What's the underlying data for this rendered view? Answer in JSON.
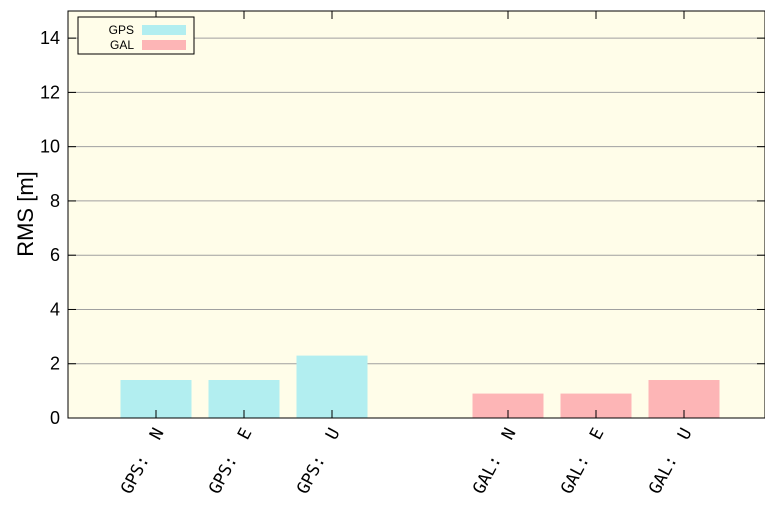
{
  "chart_data": {
    "type": "bar",
    "title": "",
    "xlabel": "",
    "ylabel": "RMS [m]",
    "ylim": [
      0,
      15
    ],
    "yticks": [
      0,
      2,
      4,
      6,
      8,
      10,
      12,
      14
    ],
    "grid": true,
    "legend_position": "top-left",
    "background_color": "#fffde9",
    "categories": [
      "GPS:  N",
      "GPS:  E",
      "GPS:  U",
      "GAL:  N",
      "GAL:  E",
      "GAL:  U"
    ],
    "series": [
      {
        "name": "GPS",
        "color": "#b2eef0",
        "values": [
          1.4,
          1.4,
          2.3,
          null,
          null,
          null
        ]
      },
      {
        "name": "GAL",
        "color": "#fdb5b6",
        "values": [
          null,
          null,
          null,
          0.9,
          0.9,
          1.4
        ]
      }
    ]
  }
}
